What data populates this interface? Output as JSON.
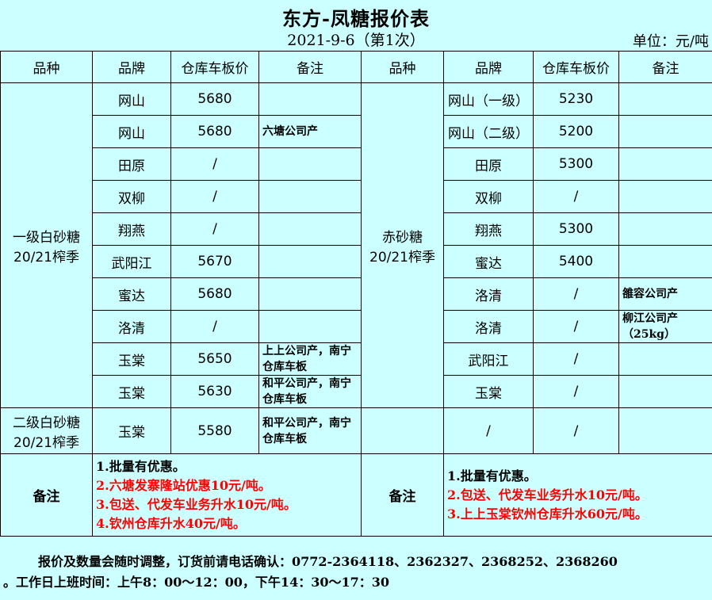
{
  "title": "东方-凤糖报价表",
  "date": "2021-9-6（第1次）",
  "unit": "单位：元/吨",
  "headers": [
    "品种",
    "品牌",
    "仓库车板价",
    "备注"
  ],
  "left": {
    "category1": "一级白砂糖 20/21榨季",
    "category2": "二级白砂糖 20/21榨季",
    "rows": [
      {
        "brand": "网山",
        "price": "5680",
        "note": ""
      },
      {
        "brand": "网山",
        "price": "5680",
        "note": "六塘公司产"
      },
      {
        "brand": "田原",
        "price": "/",
        "note": ""
      },
      {
        "brand": "双柳",
        "price": "/",
        "note": ""
      },
      {
        "brand": "翔燕",
        "price": "/",
        "note": ""
      },
      {
        "brand": "武阳江",
        "price": "5670",
        "note": ""
      },
      {
        "brand": "蜜达",
        "price": "5680",
        "note": ""
      },
      {
        "brand": "洛清",
        "price": "/",
        "note": ""
      },
      {
        "brand": "玉棠",
        "price": "5650",
        "note": "上上公司产，南宁仓库车板"
      },
      {
        "brand": "玉棠",
        "price": "5630",
        "note": "和平公司产，南宁仓库车板"
      },
      {
        "brand": "玉棠",
        "price": "5580",
        "note": "和平公司产，南宁仓库车板"
      }
    ]
  },
  "right": {
    "category1": "赤砂糖 20/21榨季",
    "category2": "",
    "rows": [
      {
        "brand": "网山（一级）",
        "price": "5230",
        "note": ""
      },
      {
        "brand": "网山（二级）",
        "price": "5200",
        "note": ""
      },
      {
        "brand": "田原",
        "price": "5300",
        "note": ""
      },
      {
        "brand": "双柳",
        "price": "/",
        "note": ""
      },
      {
        "brand": "翔燕",
        "price": "5300",
        "note": ""
      },
      {
        "brand": "蜜达",
        "price": "5400",
        "note": ""
      },
      {
        "brand": "洛清",
        "price": "/",
        "note": "雒容公司产"
      },
      {
        "brand": "洛清",
        "price": "/",
        "note": "柳江公司产（25kg）"
      },
      {
        "brand": "武阳江",
        "price": "/",
        "note": ""
      },
      {
        "brand": "玉棠",
        "price": "/",
        "note": ""
      },
      {
        "brand": "/",
        "price": "/",
        "note": ""
      }
    ]
  },
  "notes": {
    "label": "备注",
    "left": [
      "1.批量有优惠。",
      "2.六塘发寨隆站优惠10元/吨。",
      "3.包送、代发车业务升水10元/吨。",
      "4.钦州仓库升水40元/吨。"
    ],
    "right": [
      "1.批量有优惠。",
      "2.包送、代发车业务升水10元/吨。",
      "3.上上玉棠钦州仓库升水60元/吨。"
    ]
  },
  "footer": {
    "line1": "报价及数量会随时调整，订货前请电话确认：0772-2364118、2362327、2368252、2368260",
    "line2": "。工作日上班时间：上午8：00～12：00，下午14：30～17：30"
  },
  "colors": {
    "background": "#ccffff",
    "highlight": "#ff0000"
  }
}
